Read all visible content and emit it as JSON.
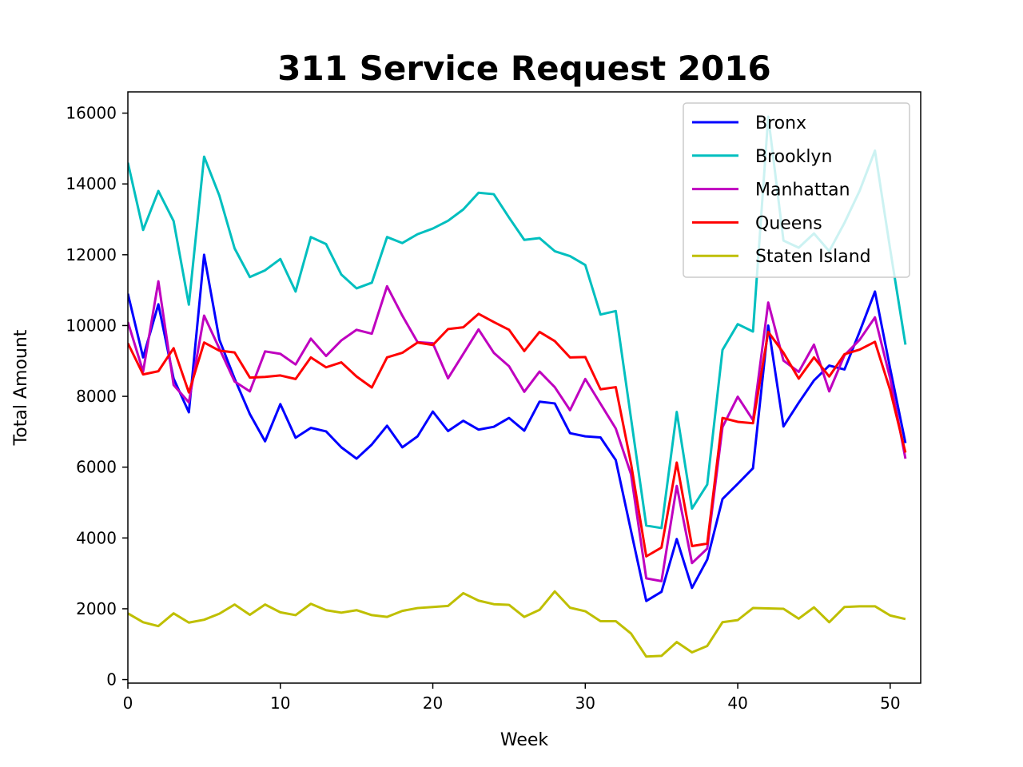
{
  "chart_data": {
    "type": "line",
    "title": "311 Service Request 2016",
    "xlabel": "Week",
    "ylabel": "Total Amount",
    "xlim": [
      0,
      52
    ],
    "ylim": [
      -100,
      16600
    ],
    "xticks": [
      0,
      10,
      20,
      30,
      40,
      50
    ],
    "yticks": [
      0,
      2000,
      4000,
      6000,
      8000,
      10000,
      12000,
      14000,
      16000
    ],
    "grid": false,
    "legend_position": "top-right",
    "x": [
      0,
      1,
      2,
      3,
      4,
      5,
      6,
      7,
      8,
      9,
      10,
      11,
      12,
      13,
      14,
      15,
      16,
      17,
      18,
      19,
      20,
      21,
      22,
      23,
      24,
      25,
      26,
      27,
      28,
      29,
      30,
      31,
      32,
      33,
      34,
      35,
      36,
      37,
      38,
      39,
      40,
      41,
      42,
      43,
      44,
      45,
      46,
      47,
      48,
      49,
      50,
      51
    ],
    "series": [
      {
        "name": "Bronx",
        "color": "#0000ff",
        "values": [
          10900,
          9100,
          10600,
          8500,
          7550,
          12000,
          9600,
          8500,
          7500,
          6730,
          7780,
          6830,
          7110,
          7010,
          6560,
          6240,
          6640,
          7170,
          6560,
          6870,
          7570,
          7020,
          7310,
          7060,
          7140,
          7390,
          7030,
          7850,
          7800,
          6960,
          6870,
          6840,
          6200,
          4200,
          2220,
          2480,
          3970,
          2590,
          3390,
          5100,
          5530,
          5970,
          10000,
          7150,
          7820,
          8450,
          8870,
          8760,
          9830,
          10960,
          8780,
          6680
        ]
      },
      {
        "name": "Brooklyn",
        "color": "#00bfbf",
        "values": [
          14600,
          12700,
          13800,
          12950,
          10590,
          14770,
          13670,
          12180,
          11370,
          11560,
          11880,
          10960,
          12500,
          12300,
          11440,
          11050,
          11210,
          12500,
          12330,
          12580,
          12740,
          12960,
          13280,
          13750,
          13710,
          13050,
          12420,
          12470,
          12100,
          11960,
          11710,
          10310,
          10410,
          7380,
          4350,
          4280,
          7560,
          4830,
          5510,
          9310,
          10040,
          9830,
          15900,
          12400,
          12200,
          12600,
          12100,
          12900,
          13810,
          14940,
          12150,
          9460
        ]
      },
      {
        "name": "Manhattan",
        "color": "#bf00bf",
        "values": [
          10100,
          8700,
          11250,
          8320,
          7830,
          10280,
          9350,
          8420,
          8140,
          9270,
          9200,
          8900,
          9630,
          9140,
          9580,
          9880,
          9770,
          11110,
          10280,
          9530,
          9500,
          8510,
          9200,
          9890,
          9230,
          8850,
          8130,
          8700,
          8260,
          7610,
          8490,
          7790,
          7090,
          5800,
          2860,
          2780,
          5470,
          3290,
          3700,
          7130,
          7990,
          7330,
          10650,
          9010,
          8690,
          9460,
          8140,
          9160,
          9600,
          10230,
          8500,
          6240
        ]
      },
      {
        "name": "Queens",
        "color": "#ff0000",
        "values": [
          9500,
          8620,
          8710,
          9360,
          8110,
          9520,
          9290,
          9240,
          8530,
          8550,
          8590,
          8490,
          9100,
          8820,
          8960,
          8560,
          8250,
          9100,
          9230,
          9520,
          9450,
          9900,
          9950,
          10330,
          10100,
          9880,
          9280,
          9820,
          9560,
          9100,
          9110,
          8200,
          8260,
          6100,
          3480,
          3730,
          6130,
          3770,
          3840,
          7390,
          7280,
          7240,
          9820,
          9230,
          8500,
          9100,
          8560,
          9190,
          9320,
          9540,
          8170,
          6410
        ]
      },
      {
        "name": "Staten Island",
        "color": "#bfbf00",
        "values": [
          1870,
          1620,
          1510,
          1870,
          1610,
          1690,
          1860,
          2120,
          1830,
          2120,
          1900,
          1820,
          2140,
          1960,
          1890,
          1960,
          1820,
          1770,
          1940,
          2020,
          2050,
          2080,
          2440,
          2230,
          2130,
          2110,
          1770,
          1970,
          2490,
          2030,
          1930,
          1650,
          1650,
          1300,
          650,
          670,
          1060,
          770,
          950,
          1620,
          1680,
          2020,
          2010,
          2000,
          1720,
          2040,
          1620,
          2050,
          2070,
          2070,
          1810,
          1710
        ]
      }
    ]
  }
}
